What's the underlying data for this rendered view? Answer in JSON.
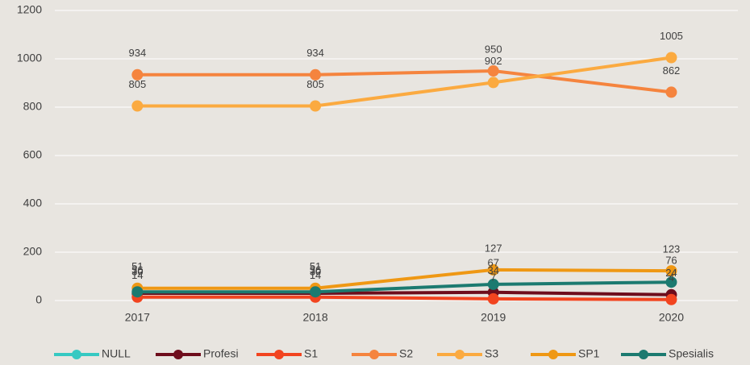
{
  "chart_data": {
    "type": "line",
    "categories": [
      "2017",
      "2018",
      "2019",
      "2020"
    ],
    "series": [
      {
        "name": "NULL",
        "color": "#36c9c2",
        "values": [
          null,
          null,
          null,
          null
        ]
      },
      {
        "name": "Profesi",
        "color": "#6e0d1c",
        "values": [
          30,
          30,
          34,
          24
        ]
      },
      {
        "name": "S1",
        "color": "#f2441f",
        "values": [
          14,
          14,
          7,
          4
        ]
      },
      {
        "name": "S2",
        "color": "#f5843e",
        "values": [
          934,
          934,
          950,
          862
        ]
      },
      {
        "name": "S3",
        "color": "#fbaa40",
        "values": [
          805,
          805,
          902,
          1005
        ]
      },
      {
        "name": "SP1",
        "color": "#ef9814",
        "values": [
          51,
          51,
          127,
          123
        ]
      },
      {
        "name": "Spesialis",
        "color": "#1c7a70",
        "values": [
          36,
          36,
          67,
          76
        ]
      }
    ],
    "ylim": [
      0,
      1200
    ],
    "yticks": [
      0,
      200,
      400,
      600,
      800,
      1000,
      1200
    ],
    "grid": true,
    "legend": "bottom"
  }
}
